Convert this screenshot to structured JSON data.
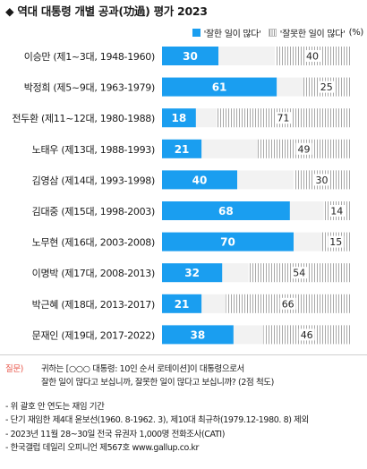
{
  "title": "◆ 역대 대통령 개별 공과(功過) 평가 2023",
  "legend": {
    "good_label": "'잘한 일이 많다'",
    "bad_label": "'잘못한 일이 많다'",
    "unit": "(%)"
  },
  "colors": {
    "good": "#1a9ef0",
    "bad_hatch": "#9a9a9a",
    "question": "#e8564a"
  },
  "chart_data": {
    "type": "bar",
    "stacked": true,
    "orientation": "horizontal",
    "categories": [
      "이승만 (제1~3대, 1948-1960)",
      "박정희 (제5~9대, 1963-1979)",
      "전두환 (제11~12대, 1980-1988)",
      "노태우 (제13대, 1988-1993)",
      "김영삼 (제14대, 1993-1998)",
      "김대중 (제15대, 1998-2003)",
      "노무현 (제16대, 2003-2008)",
      "이명박 (제17대, 2008-2013)",
      "박근혜 (제18대, 2013-2017)",
      "문재인 (제19대, 2017-2022)"
    ],
    "series": [
      {
        "name": "'잘한 일이 많다'",
        "values": [
          30,
          61,
          18,
          21,
          40,
          68,
          70,
          32,
          21,
          38
        ]
      },
      {
        "name": "'잘못한 일이 많다'",
        "values": [
          40,
          25,
          71,
          49,
          30,
          14,
          15,
          54,
          66,
          46
        ]
      }
    ],
    "xlim": [
      0,
      100
    ],
    "legend_position": "top-right"
  },
  "notes": {
    "question_label": "질문)",
    "question_line1": "귀하는 [○○○ 대통령: 10인 순서 로테이션]이 대통령으로서",
    "question_line2": "잘한 일이 많다고 보십니까, 잘못한 일이 많다고 보십니까? (2점 척도)",
    "footnotes": [
      "- 위 괄호 안 연도는 재임 기간",
      "- 단기 재임한 제4대 윤보선(1960. 8-1962. 3), 제10대 최규하(1979.12-1980. 8) 제외",
      "- 2023년 11월 28~30일 전국 유권자 1,000명 전화조사(CATI)",
      "- 한국갤럽 데일리 오피니언 제567호 www.gallup.co.kr"
    ]
  }
}
